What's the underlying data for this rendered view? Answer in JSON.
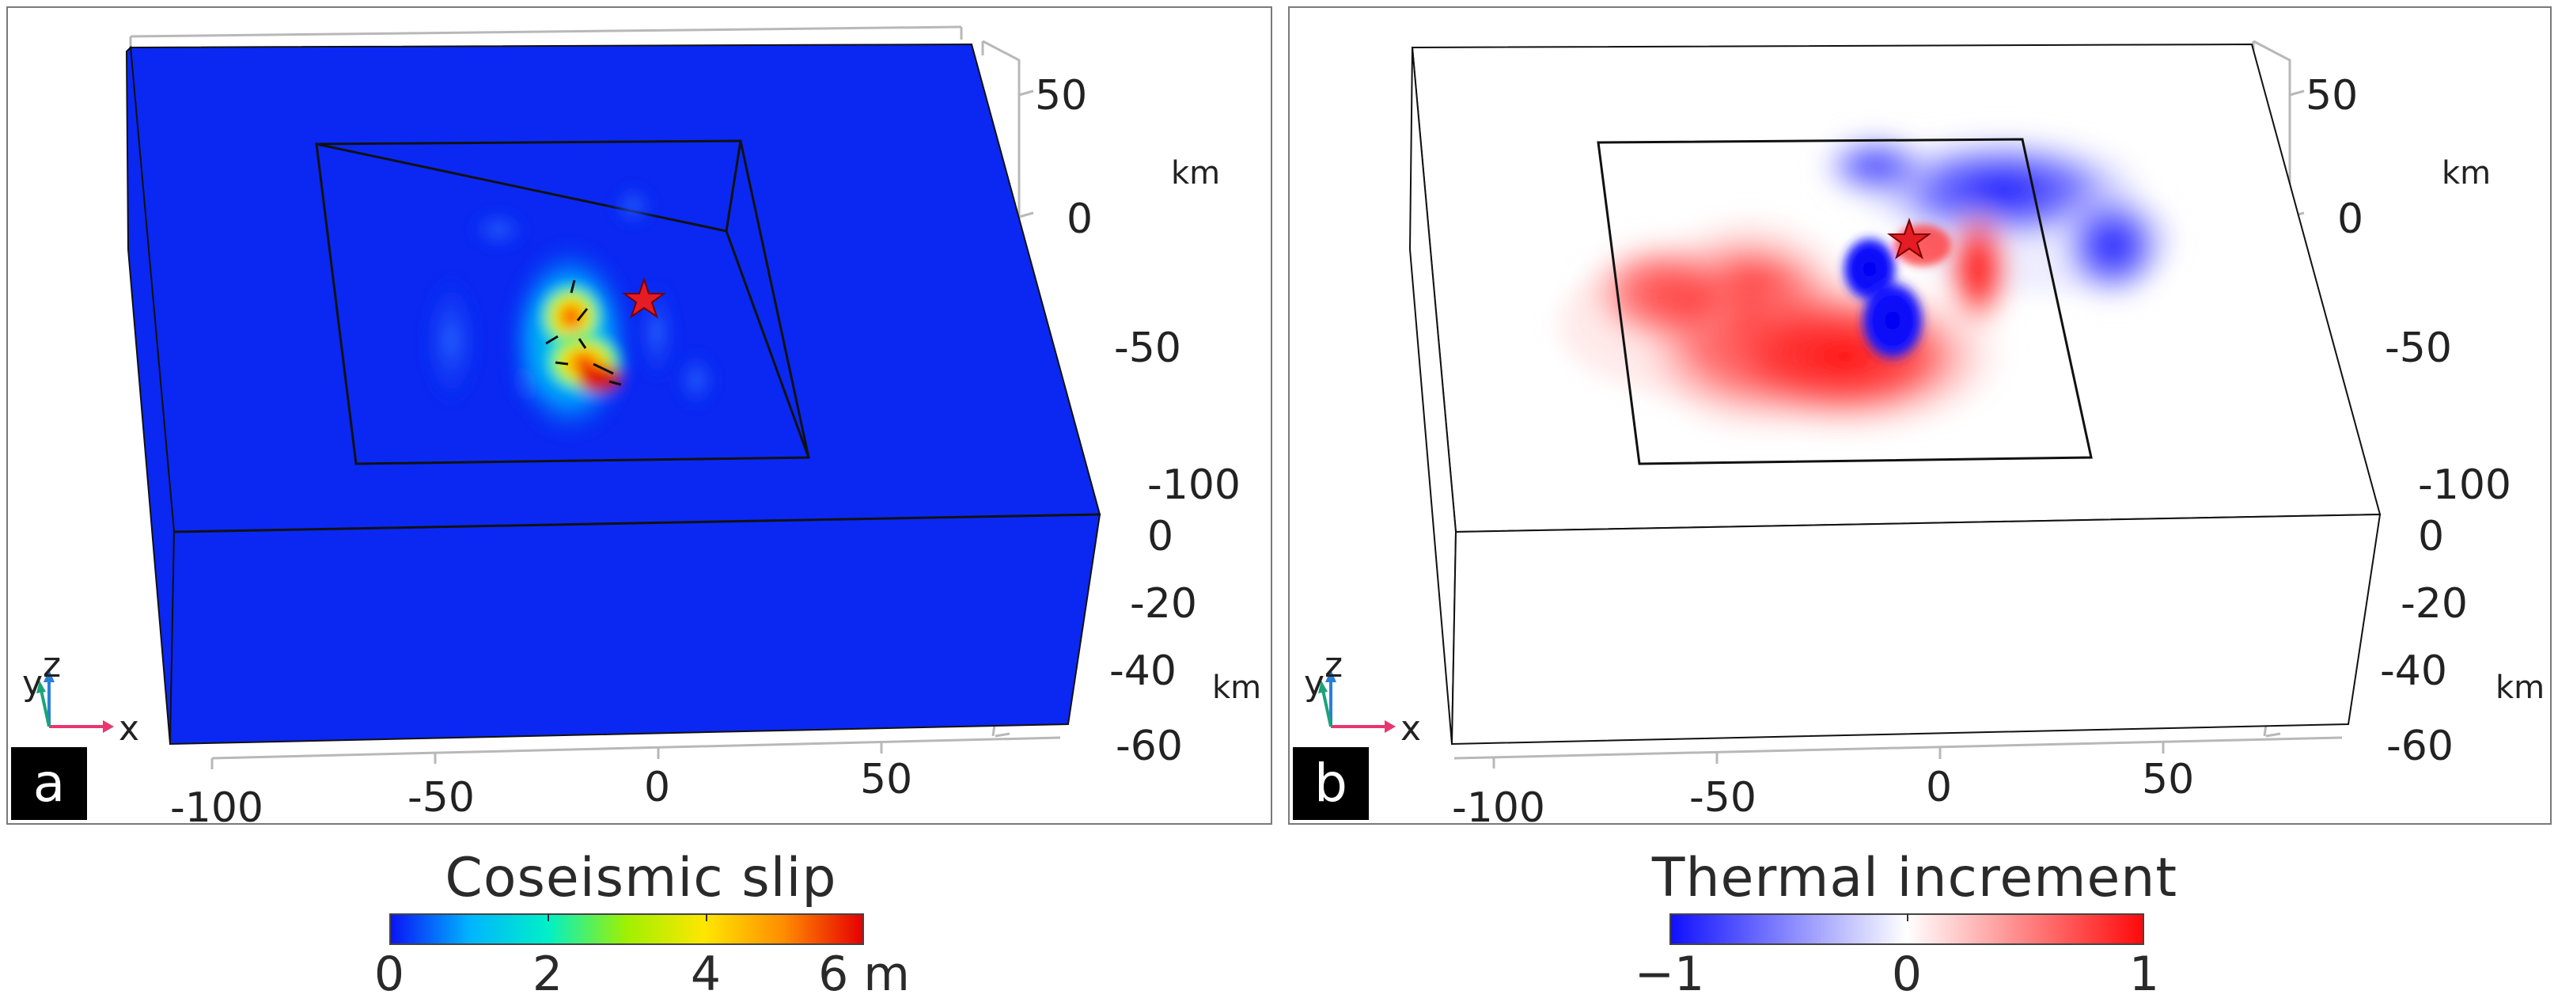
{
  "panel_a": {
    "letter": "a",
    "x_ticks": [
      "-100",
      "-50",
      "0",
      "50"
    ],
    "y_ticks": [
      "50",
      "0",
      "-50",
      "-100"
    ],
    "y_unit": "km",
    "z_ticks": [
      "0",
      "-20",
      "-40",
      "-60"
    ],
    "z_unit": "km",
    "triad": {
      "x": "x",
      "y": "y",
      "z": "z"
    },
    "box_color": "#0a28f2"
  },
  "panel_b": {
    "letter": "b",
    "x_ticks": [
      "-100",
      "-50",
      "0",
      "50"
    ],
    "y_ticks": [
      "50",
      "0",
      "-50",
      "-100"
    ],
    "y_unit": "km",
    "z_ticks": [
      "0",
      "-20",
      "-40",
      "-60"
    ],
    "z_unit": "km",
    "triad": {
      "x": "x",
      "y": "y",
      "z": "z"
    },
    "box_color": "#ffffff"
  },
  "colorbar_a": {
    "title": "Coseismic slip",
    "ticks": [
      "0",
      "2",
      "4",
      "6 m"
    ],
    "colors": [
      "#0a14f5",
      "#00b4ff",
      "#00f0c8",
      "#a0f000",
      "#ffe600",
      "#ff8c00",
      "#e60000"
    ]
  },
  "colorbar_b": {
    "title": "Thermal increment",
    "ticks": [
      "−1",
      "0",
      "1"
    ],
    "colors": [
      "#1010ff",
      "#ffffff",
      "#ff0a0a"
    ]
  },
  "colors": {
    "epicenter_star": "#e51c23",
    "triad_x": "#e8366f",
    "triad_y": "#1aa37a",
    "triad_z": "#2b7fd6"
  }
}
